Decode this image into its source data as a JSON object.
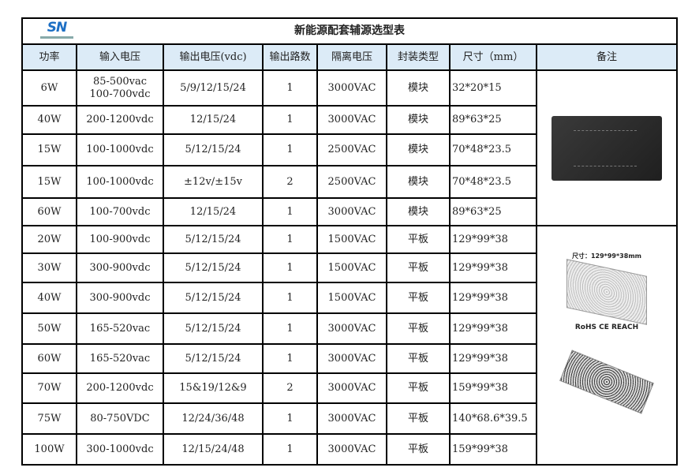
{
  "logo": {
    "text": "SN"
  },
  "title": "新能源配套辅源选型表",
  "headers": [
    "功率",
    "输入电压",
    "输出电压(vdc)",
    "输出路数",
    "隔离电压",
    "封装类型",
    "尺寸（mm）",
    "备注"
  ],
  "rows": [
    [
      "6W",
      "85-500vac\n100-700vdc",
      "5/9/12/15/24",
      "1",
      "3000VAC",
      "模块",
      "32*20*15"
    ],
    [
      "40W",
      "200-1200vdc",
      "12/15/24",
      "1",
      "3000VAC",
      "模块",
      "89*63*25"
    ],
    [
      "15W",
      "100-1000vdc",
      "5/12/15/24",
      "1",
      "2500VAC",
      "模块",
      "70*48*23.5"
    ],
    [
      "15W",
      "100-1000vdc",
      "±12v/±15v",
      "2",
      "2500VAC",
      "模块",
      "70*48*23.5"
    ],
    [
      "60W",
      "100-700vdc",
      "12/15/24",
      "1",
      "3000VAC",
      "模块",
      "89*63*25"
    ],
    [
      "20W",
      "100-900vdc",
      "5/12/15/24",
      "1",
      "1500VAC",
      "平板",
      "129*99*38"
    ],
    [
      "30W",
      "300-900vdc",
      "5/12/15/24",
      "1",
      "1500VAC",
      "平板",
      "129*99*38"
    ],
    [
      "40W",
      "300-900vdc",
      "5/12/15/24",
      "1",
      "1500VAC",
      "平板",
      "129*99*38"
    ],
    [
      "50W",
      "165-520vac",
      "5/12/15/24",
      "1",
      "3000VAC",
      "平板",
      "129*99*38"
    ],
    [
      "60W",
      "165-520vac",
      "5/12/15/24",
      "1",
      "3000VAC",
      "平板",
      "129*99*38"
    ],
    [
      "70W",
      "200-1200vdc",
      "15&19/12&9",
      "2",
      "3000VAC",
      "平板",
      "159*99*38"
    ],
    [
      "75W",
      "80-750VDC",
      "12/24/36/48",
      "1",
      "3000VAC",
      "平板",
      "140*68.6*39.5"
    ],
    [
      "100W",
      "300-1000vdc",
      "12/15/24/48",
      "1",
      "3000VAC",
      "平板",
      "159*99*38"
    ]
  ],
  "remarks": {
    "size_label": "尺寸：129*99*38mm",
    "certs": "RoHS CE REACH"
  }
}
